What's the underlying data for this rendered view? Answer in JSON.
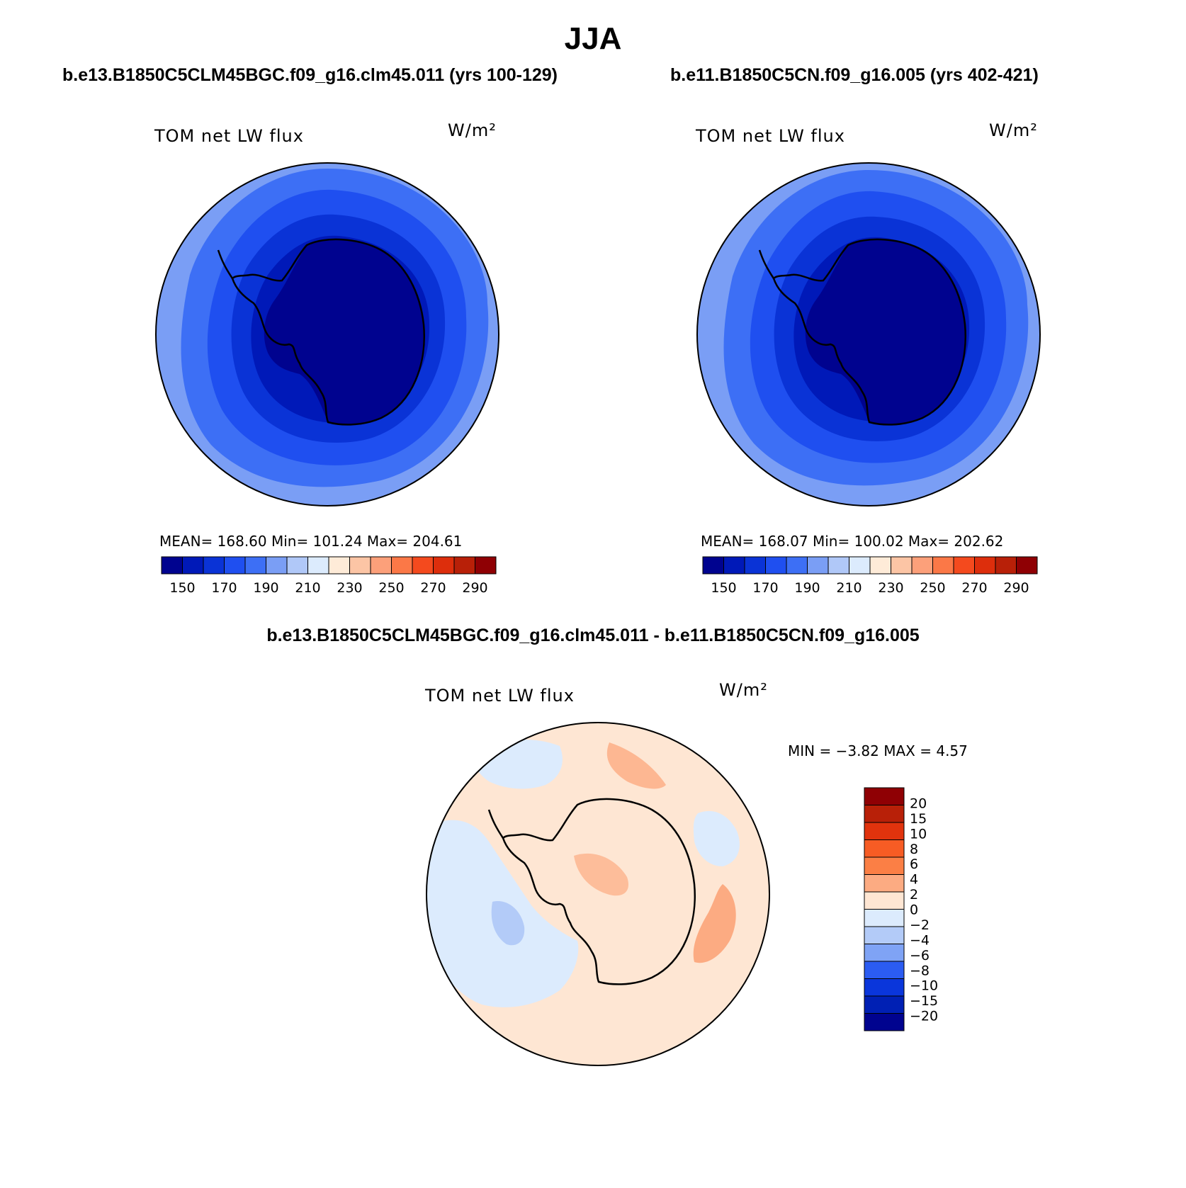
{
  "title": "JJA",
  "panels": [
    {
      "case_title": "b.e13.B1850C5CLM45BGC.f09_g16.clm45.011 (yrs 100-129)",
      "variable": "TOM net LW flux",
      "units": "W/m²",
      "stats": "MEAN= 168.60   Min= 101.24   Max= 204.61"
    },
    {
      "case_title": "b.e11.B1850C5CN.f09_g16.005 (yrs 402-421)",
      "variable": "TOM net LW flux",
      "units": "W/m²",
      "stats": "MEAN= 168.07   Min= 100.02   Max= 202.62"
    }
  ],
  "colorbar": {
    "colors": [
      "#00038f",
      "#0019b8",
      "#0a33d6",
      "#1f4ff0",
      "#3d6ff5",
      "#7a9ef5",
      "#b0c8f8",
      "#dcebfd",
      "#feebd8",
      "#fcc5a5",
      "#fca07a",
      "#fb7847",
      "#f44a1e",
      "#dd2e0c",
      "#b82008",
      "#8f0004"
    ],
    "labels": [
      "150",
      "170",
      "190",
      "210",
      "230",
      "250",
      "270",
      "290"
    ]
  },
  "diff": {
    "title": "b.e13.B1850C5CLM45BGC.f09_g16.clm45.011 - b.e11.B1850C5CN.f09_g16.005",
    "variable": "TOM net LW flux",
    "units": "W/m²",
    "minmax": "MIN =   −3.82 MAX =    4.57",
    "colors": [
      "#8f0004",
      "#b82008",
      "#e1330d",
      "#f75c24",
      "#fb7f45",
      "#fcab82",
      "#fee6d3",
      "#dcebfd",
      "#b3cbf8",
      "#7fa3f5",
      "#2b5cf2",
      "#0a36db",
      "#0020b4",
      "#00038f"
    ],
    "labels": [
      "20",
      "15",
      "10",
      "8",
      "6",
      "4",
      "2",
      "0",
      "−2",
      "−4",
      "−6",
      "−8",
      "−10",
      "−15",
      "−20"
    ]
  }
}
